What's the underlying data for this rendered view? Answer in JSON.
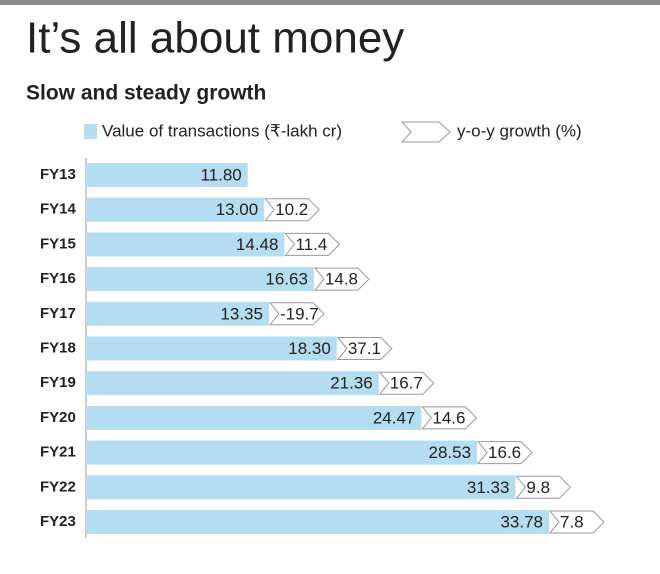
{
  "chart_data": {
    "type": "bar",
    "orientation": "horizontal",
    "title": "It’s all about money",
    "subtitle": "Slow and steady growth",
    "categories": [
      "FY13",
      "FY14",
      "FY15",
      "FY16",
      "FY17",
      "FY18",
      "FY19",
      "FY20",
      "FY21",
      "FY22",
      "FY23"
    ],
    "series": [
      {
        "name": "Value of transactions (₹-lakh cr)",
        "color": "#b5ddf1",
        "values": [
          11.8,
          13.0,
          14.48,
          16.63,
          13.35,
          18.3,
          21.36,
          24.47,
          28.53,
          31.33,
          33.78
        ],
        "value_labels": [
          "11.80",
          "13.00",
          "14.48",
          "16.63",
          "13.35",
          "18.30",
          "21.36",
          "24.47",
          "28.53",
          "31.33",
          "33.78"
        ]
      },
      {
        "name": "y-o-y growth (%)",
        "color": "#ffffff",
        "values": [
          null,
          10.2,
          11.4,
          14.8,
          -19.7,
          37.1,
          16.7,
          14.6,
          16.6,
          9.8,
          7.8
        ]
      }
    ]
  }
}
